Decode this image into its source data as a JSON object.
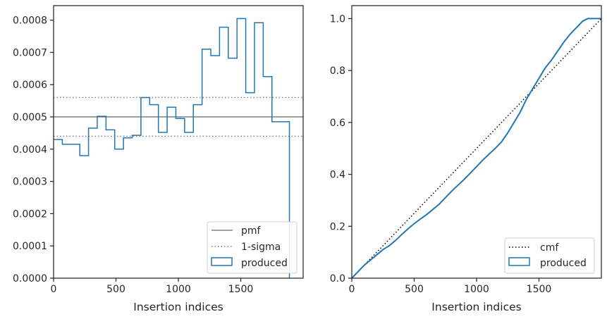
{
  "chart_data": [
    {
      "type": "histogram-step",
      "xlabel": "Insertion indices",
      "ylabel": "",
      "xlim": [
        0,
        2000
      ],
      "ylim": [
        0,
        0.000845
      ],
      "xticks": [
        0,
        500,
        1000,
        1500
      ],
      "yticks": [
        0,
        0.0001,
        0.0002,
        0.0003,
        0.0004,
        0.0005,
        0.0006,
        0.0007,
        0.0008
      ],
      "ytick_labels": [
        "0.0000",
        "0.0001",
        "0.0002",
        "0.0003",
        "0.0004",
        "0.0005",
        "0.0006",
        "0.0007",
        "0.0008"
      ],
      "grid": false,
      "legend_position": "lower right",
      "hlines": [
        {
          "name": "pmf",
          "y": 0.0005,
          "style": "solid",
          "color": "#808080"
        },
        {
          "name": "1-sigma",
          "y": 0.00056,
          "style": "dotted",
          "color": "#808080"
        },
        {
          "name": "",
          "y": 0.00044,
          "style": "dotted",
          "color": "#808080"
        }
      ],
      "series": [
        {
          "name": "produced",
          "color": "#1f77b4",
          "bin_edges": [
            0,
            70,
            140,
            210,
            280,
            350,
            420,
            490,
            560,
            630,
            700,
            770,
            840,
            910,
            980,
            1050,
            1120,
            1190,
            1260,
            1330,
            1400,
            1470,
            1540,
            1610,
            1680,
            1750,
            1890
          ],
          "values": [
            0.00043,
            0.000415,
            0.000415,
            0.00038,
            0.000465,
            0.000502,
            0.00046,
            0.0004,
            0.000435,
            0.000443,
            0.00056,
            0.000538,
            0.000452,
            0.00053,
            0.000495,
            0.000452,
            0.000538,
            0.00071,
            0.00069,
            0.000778,
            0.000682,
            0.000805,
            0.000575,
            0.000792,
            0.000625,
            0.000485
          ]
        }
      ],
      "legend": [
        "pmf",
        "1-sigma",
        "produced"
      ]
    },
    {
      "type": "line",
      "xlabel": "Insertion indices",
      "ylabel": "",
      "xlim": [
        0,
        2000
      ],
      "ylim": [
        0,
        1.05
      ],
      "xticks": [
        0,
        500,
        1000,
        1500
      ],
      "yticks": [
        0.0,
        0.2,
        0.4,
        0.6,
        0.8,
        1.0
      ],
      "ytick_labels": [
        "0.0",
        "0.2",
        "0.4",
        "0.6",
        "0.8",
        "1.0"
      ],
      "grid": false,
      "legend_position": "lower right",
      "series": [
        {
          "name": "cmf",
          "style": "dotted",
          "color": "#000000",
          "x": [
            0,
            2000
          ],
          "y": [
            0,
            1.0
          ]
        },
        {
          "name": "produced",
          "style": "solid",
          "color": "#1f77b4",
          "x": [
            0,
            50,
            100,
            150,
            200,
            250,
            300,
            350,
            400,
            450,
            500,
            550,
            600,
            650,
            700,
            750,
            800,
            850,
            900,
            950,
            1000,
            1050,
            1100,
            1150,
            1200,
            1250,
            1300,
            1350,
            1400,
            1450,
            1500,
            1550,
            1600,
            1650,
            1700,
            1750,
            1800,
            1850,
            1890,
            2000
          ],
          "y": [
            0,
            0.025,
            0.05,
            0.07,
            0.09,
            0.11,
            0.125,
            0.145,
            0.168,
            0.19,
            0.21,
            0.228,
            0.245,
            0.265,
            0.285,
            0.31,
            0.335,
            0.358,
            0.38,
            0.405,
            0.43,
            0.455,
            0.478,
            0.5,
            0.525,
            0.56,
            0.6,
            0.64,
            0.69,
            0.73,
            0.77,
            0.81,
            0.84,
            0.875,
            0.91,
            0.94,
            0.965,
            0.99,
            1.0,
            1.0
          ]
        }
      ],
      "legend": [
        "cmf",
        "produced"
      ]
    }
  ]
}
